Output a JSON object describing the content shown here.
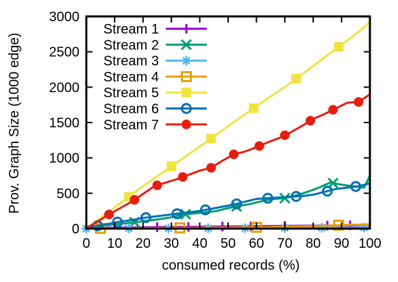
{
  "chart_data": {
    "type": "line",
    "xlabel": "consumed records (%)",
    "ylabel": "Prov. Graph Size (1000 edge)",
    "xlim": [
      0,
      100
    ],
    "ylim": [
      0,
      3000
    ],
    "xticks": [
      0,
      10,
      20,
      30,
      40,
      50,
      60,
      70,
      80,
      90,
      100
    ],
    "yticks": [
      0,
      500,
      1000,
      1500,
      2000,
      2500,
      3000
    ],
    "grid": false,
    "legend_position": "top-left",
    "series": [
      {
        "name": "Stream 1",
        "color": "#9400d3",
        "marker": "plus",
        "x": [
          0,
          2,
          4,
          6,
          8,
          10,
          15,
          20,
          25,
          30,
          35,
          40,
          45,
          50,
          55,
          60,
          65,
          70,
          75,
          80,
          85,
          90,
          95,
          100
        ],
        "y": [
          5,
          8,
          10,
          12,
          13,
          14,
          16,
          18,
          20,
          22,
          24,
          26,
          28,
          30,
          32,
          34,
          36,
          38,
          40,
          42,
          44,
          46,
          48,
          50
        ],
        "marker_x": [
          25,
          36,
          48,
          58,
          70,
          85,
          93
        ]
      },
      {
        "name": "Stream 2",
        "color": "#009e73",
        "marker": "x",
        "x": [
          0,
          3,
          7,
          10,
          14,
          18,
          22,
          26,
          30,
          34,
          38,
          42,
          46,
          50,
          54,
          58,
          62,
          66,
          70,
          74,
          78,
          82,
          86,
          90,
          94,
          98,
          100
        ],
        "y": [
          10,
          25,
          45,
          60,
          75,
          95,
          115,
          135,
          160,
          200,
          215,
          230,
          250,
          290,
          320,
          350,
          390,
          420,
          430,
          470,
          520,
          580,
          650,
          620,
          600,
          580,
          750
        ],
        "marker_x": [
          17,
          35,
          53,
          70,
          87
        ]
      },
      {
        "name": "Stream 3",
        "color": "#56b4e9",
        "marker": "star",
        "x": [
          0,
          10,
          20,
          30,
          40,
          50,
          60,
          70,
          80,
          90,
          100
        ],
        "y": [
          0,
          2,
          3,
          4,
          5,
          6,
          8,
          10,
          12,
          14,
          15
        ],
        "marker_x": [
          0,
          15,
          29,
          43,
          56,
          70,
          83,
          98
        ]
      },
      {
        "name": "Stream 4",
        "color": "#e69f00",
        "marker": "square",
        "x": [
          0,
          5,
          10,
          20,
          30,
          40,
          50,
          60,
          70,
          80,
          90,
          100
        ],
        "y": [
          0,
          3,
          5,
          8,
          10,
          12,
          15,
          18,
          25,
          35,
          50,
          60
        ],
        "marker_x": [
          5,
          33,
          60,
          89
        ]
      },
      {
        "name": "Stream 5",
        "color": "#f0e442",
        "marker": "filled-square",
        "x": [
          0,
          5,
          10,
          15,
          20,
          25,
          30,
          35,
          40,
          45,
          50,
          55,
          60,
          65,
          70,
          75,
          80,
          85,
          90,
          95,
          100
        ],
        "y": [
          0,
          150,
          300,
          450,
          600,
          740,
          880,
          1020,
          1160,
          1300,
          1450,
          1590,
          1730,
          1870,
          2000,
          2150,
          2300,
          2450,
          2600,
          2750,
          2920
        ],
        "marker_x": [
          15,
          30,
          44,
          59,
          74,
          89
        ]
      },
      {
        "name": "Stream 6",
        "color": "#0072b2",
        "marker": "circle",
        "x": [
          0,
          4,
          8,
          12,
          16,
          20,
          24,
          28,
          32,
          36,
          40,
          44,
          48,
          52,
          56,
          60,
          64,
          68,
          72,
          76,
          80,
          84,
          88,
          92,
          96,
          100
        ],
        "y": [
          5,
          40,
          70,
          100,
          120,
          150,
          170,
          190,
          210,
          230,
          250,
          280,
          310,
          340,
          380,
          420,
          430,
          440,
          450,
          460,
          480,
          520,
          560,
          580,
          600,
          640
        ],
        "marker_x": [
          4,
          11,
          21,
          32,
          42,
          53,
          64,
          74,
          85,
          95
        ]
      },
      {
        "name": "Stream 7",
        "color": "#e51e10",
        "marker": "filled-circle",
        "x": [
          0,
          4,
          8,
          12,
          16,
          20,
          24,
          28,
          32,
          36,
          40,
          44,
          48,
          52,
          56,
          60,
          64,
          68,
          72,
          76,
          80,
          84,
          88,
          92,
          96,
          100
        ],
        "y": [
          5,
          100,
          200,
          290,
          380,
          490,
          600,
          650,
          700,
          760,
          820,
          860,
          960,
          1050,
          1090,
          1150,
          1220,
          1280,
          1360,
          1450,
          1550,
          1620,
          1700,
          1780,
          1790,
          1900
        ],
        "marker_x": [
          8,
          17,
          25,
          34,
          44,
          52,
          61,
          70,
          79,
          87,
          96
        ]
      }
    ]
  }
}
